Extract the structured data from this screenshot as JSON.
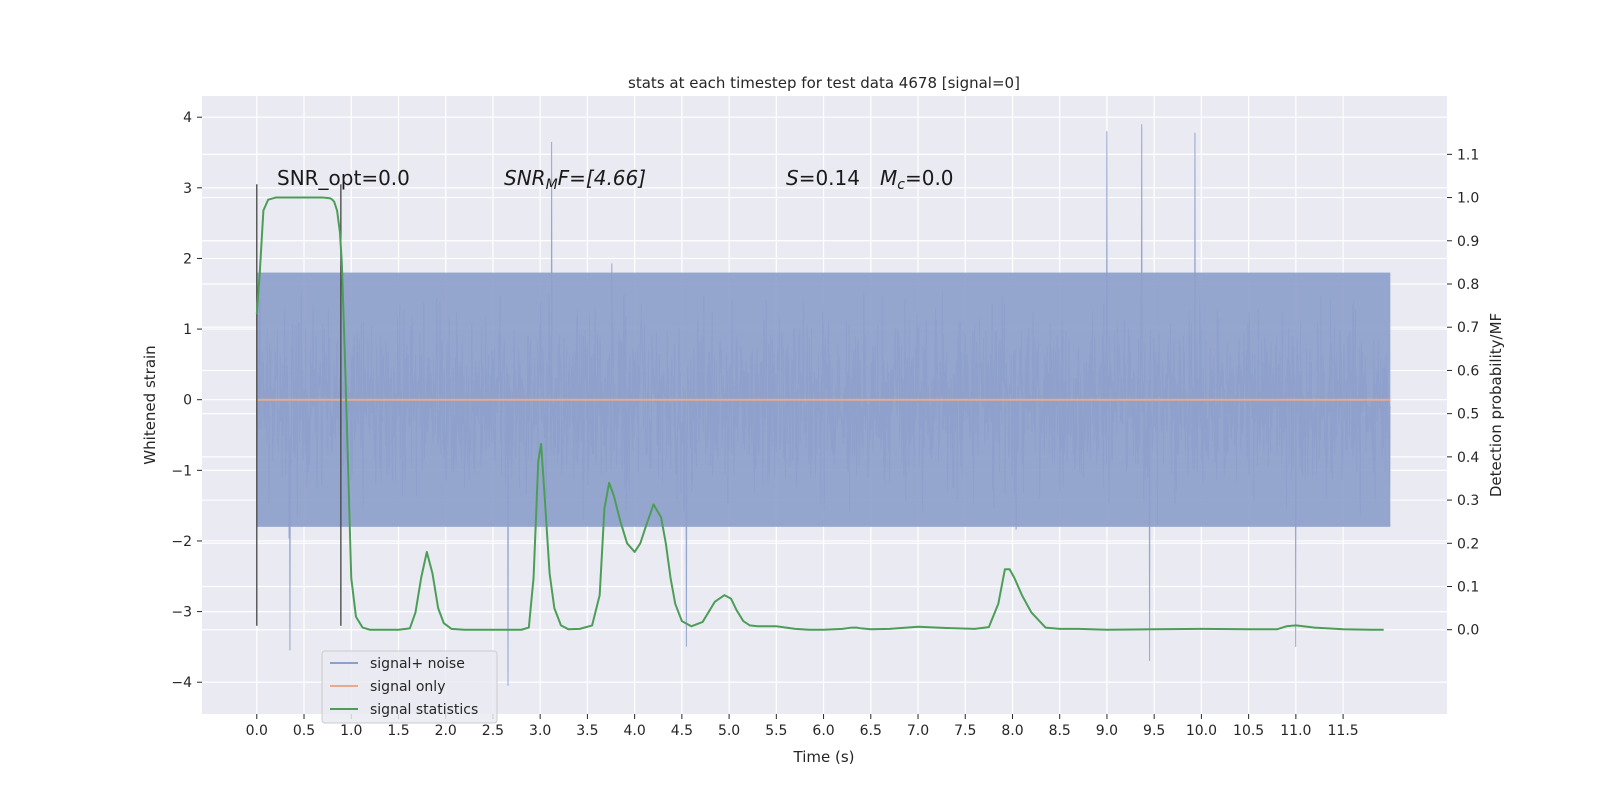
{
  "chart_data": {
    "type": "line",
    "title": "stats at each timestep for test data 4678 [signal=0]",
    "xlabel": "Time (s)",
    "ylabel": "Whitened strain",
    "y2label": "Detection probability/MF",
    "xlim": [
      -0.58,
      12.6
    ],
    "ylim": [
      -4.45,
      4.3
    ],
    "y2lim": [
      -0.195,
      1.235
    ],
    "x_ticks": [
      "0.0",
      "0.5",
      "1.0",
      "1.5",
      "2.0",
      "2.5",
      "3.0",
      "3.5",
      "4.0",
      "4.5",
      "5.0",
      "5.5",
      "6.0",
      "6.5",
      "7.0",
      "7.5",
      "8.0",
      "8.5",
      "9.0",
      "9.5",
      "10.0",
      "10.5",
      "11.0",
      "11.5"
    ],
    "y_ticks": [
      "4",
      "3",
      "2",
      "1",
      "0",
      "−1",
      "−2",
      "−3",
      "−4"
    ],
    "y2_ticks": [
      "1.1",
      "1.0",
      "0.9",
      "0.8",
      "0.7",
      "0.6",
      "0.5",
      "0.4",
      "0.3",
      "0.2",
      "0.1",
      "0.0"
    ],
    "grid": true,
    "legend_position": "lower-left",
    "annotations": {
      "snr_opt": "SNR_opt=0.0",
      "snr_mf_sym": "SNR",
      "snr_mf_sub": "M",
      "snr_mf_rest": "F=[4.66]",
      "s_sym": "S",
      "s_rest": "=0.14",
      "mc_sym": "M",
      "mc_sub": "c",
      "mc_rest": "=0.0"
    },
    "vlines_x": [
      0.0,
      0.89
    ],
    "series": [
      {
        "name": "signal+ noise",
        "color": "#8da0cb",
        "x_range": [
          0.0,
          12.0
        ],
        "typical_range": [
          -1.8,
          1.8
        ],
        "extremes": [
          {
            "x": 0.35,
            "y": -3.55
          },
          {
            "x": 2.66,
            "y": -4.05
          },
          {
            "x": 3.12,
            "y": 3.65
          },
          {
            "x": 4.55,
            "y": -3.5
          },
          {
            "x": 9.0,
            "y": 3.8
          },
          {
            "x": 9.37,
            "y": 3.9
          },
          {
            "x": 9.45,
            "y": -3.7
          },
          {
            "x": 9.93,
            "y": 3.78
          },
          {
            "x": 11.0,
            "y": -3.5
          }
        ]
      },
      {
        "name": "signal only",
        "color": "#e8a98c",
        "x": [
          0.0,
          12.0
        ],
        "y": [
          0.0,
          0.0
        ]
      },
      {
        "name": "signal statistics",
        "color": "#4c9e57",
        "axis": "right",
        "x": [
          0.0,
          0.03,
          0.07,
          0.12,
          0.2,
          0.3,
          0.5,
          0.7,
          0.75,
          0.78,
          0.8,
          0.82,
          0.85,
          0.88,
          0.9,
          0.93,
          0.97,
          1.0,
          1.05,
          1.12,
          1.2,
          1.3,
          1.5,
          1.62,
          1.68,
          1.74,
          1.8,
          1.86,
          1.92,
          1.98,
          2.06,
          2.2,
          2.6,
          2.8,
          2.88,
          2.93,
          2.98,
          3.01,
          3.05,
          3.1,
          3.15,
          3.22,
          3.3,
          3.42,
          3.55,
          3.63,
          3.68,
          3.73,
          3.78,
          3.85,
          3.92,
          4.0,
          4.06,
          4.12,
          4.2,
          4.28,
          4.33,
          4.38,
          4.43,
          4.5,
          4.6,
          4.72,
          4.85,
          4.95,
          5.02,
          5.08,
          5.15,
          5.22,
          5.3,
          5.5,
          5.7,
          5.85,
          6.0,
          6.2,
          6.3,
          6.35,
          6.4,
          6.5,
          6.7,
          7.0,
          7.3,
          7.6,
          7.75,
          7.85,
          7.92,
          7.97,
          8.02,
          8.1,
          8.2,
          8.35,
          8.5,
          8.7,
          9.0,
          9.5,
          10.0,
          10.5,
          10.8,
          10.9,
          11.0,
          11.2,
          11.5,
          11.8,
          11.93
        ],
        "y": [
          0.73,
          0.82,
          0.97,
          0.995,
          1.0,
          1.0,
          1.0,
          1.0,
          0.999,
          0.998,
          0.995,
          0.99,
          0.97,
          0.92,
          0.85,
          0.65,
          0.35,
          0.12,
          0.03,
          0.005,
          0.0,
          0.0,
          0.0,
          0.003,
          0.04,
          0.12,
          0.18,
          0.13,
          0.05,
          0.015,
          0.002,
          0.0,
          0.0,
          0.0,
          0.005,
          0.12,
          0.39,
          0.43,
          0.3,
          0.13,
          0.05,
          0.01,
          0.001,
          0.002,
          0.01,
          0.08,
          0.28,
          0.34,
          0.31,
          0.25,
          0.2,
          0.18,
          0.2,
          0.24,
          0.29,
          0.26,
          0.2,
          0.12,
          0.06,
          0.02,
          0.008,
          0.018,
          0.065,
          0.08,
          0.072,
          0.045,
          0.02,
          0.01,
          0.008,
          0.008,
          0.002,
          0.0,
          0.0,
          0.002,
          0.005,
          0.005,
          0.003,
          0.001,
          0.002,
          0.007,
          0.004,
          0.002,
          0.006,
          0.06,
          0.14,
          0.14,
          0.12,
          0.08,
          0.04,
          0.005,
          0.002,
          0.002,
          0.0,
          0.001,
          0.002,
          0.001,
          0.001,
          0.008,
          0.01,
          0.005,
          0.001,
          0.0,
          0.0
        ]
      }
    ]
  }
}
